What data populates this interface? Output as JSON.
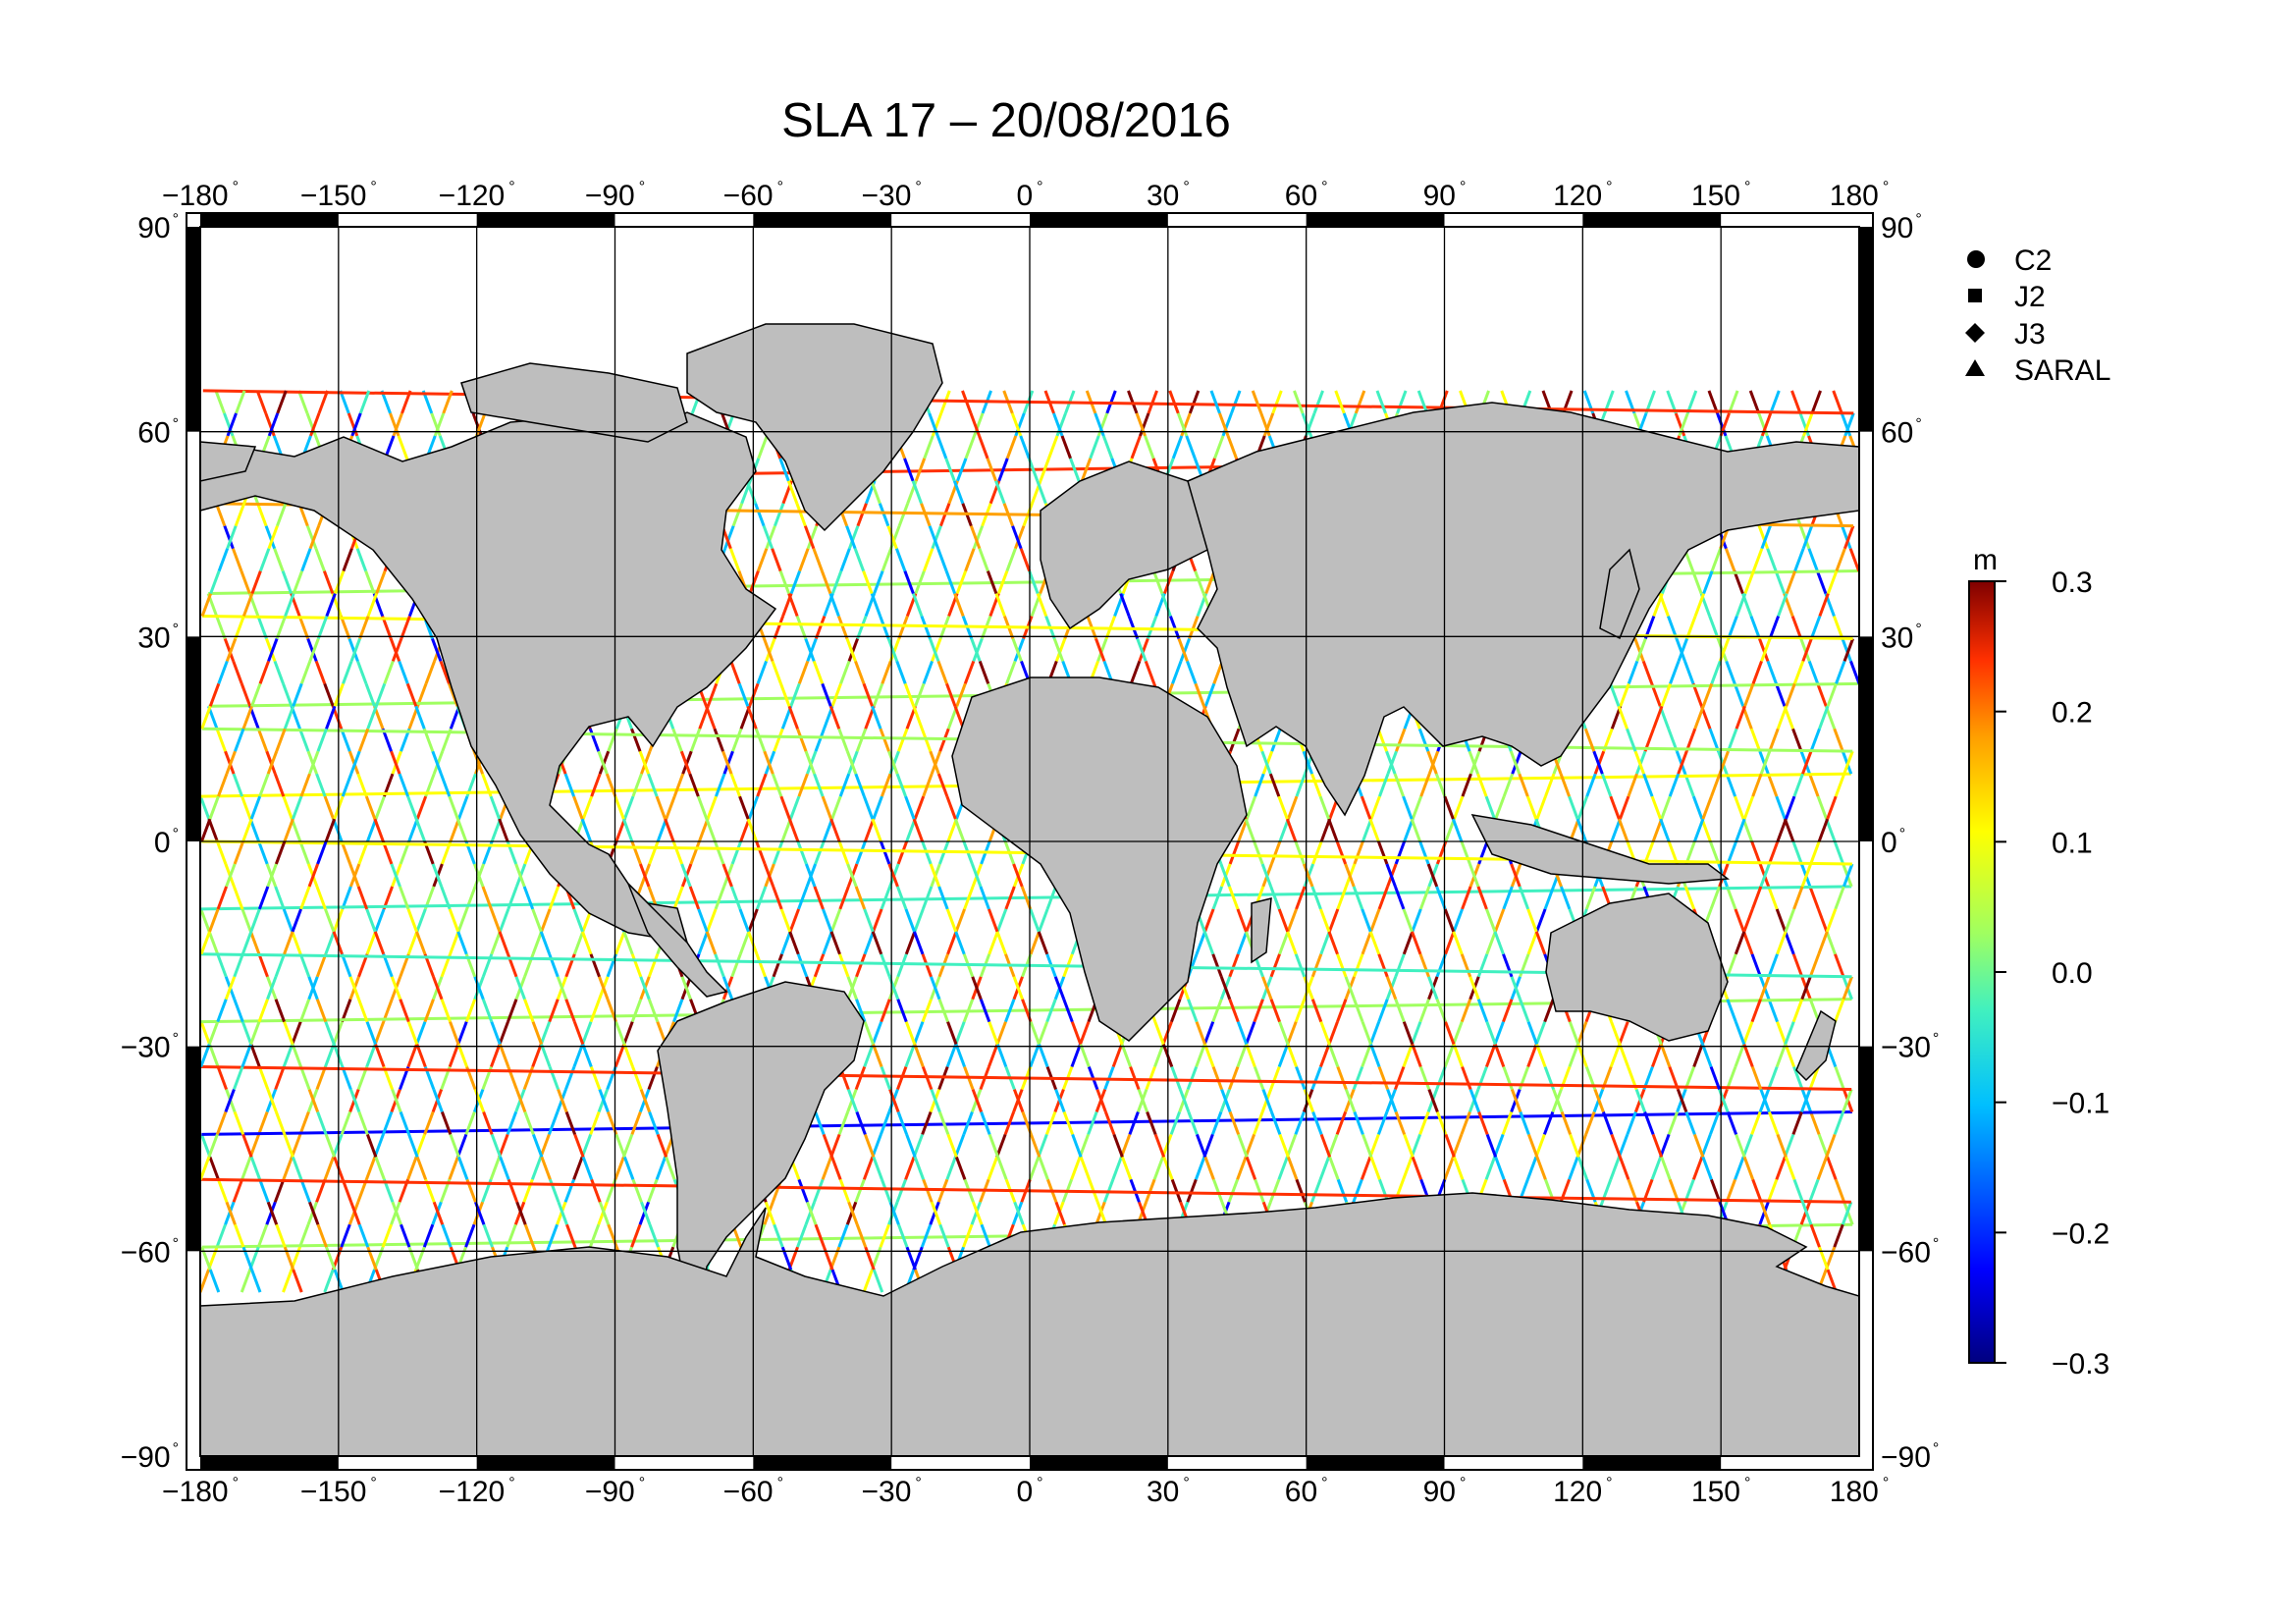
{
  "title": "SLA 17 – 20/08/2016",
  "map": {
    "projection": "equirectangular",
    "lon_range": [
      -180,
      180
    ],
    "lat_range": [
      -90,
      90
    ],
    "lon_ticks": [
      "−180",
      "−150",
      "−120",
      "−90",
      "−60",
      "−30",
      "0",
      "30",
      "60",
      "90",
      "120",
      "150",
      "180"
    ],
    "lat_ticks": [
      "90",
      "60",
      "30",
      "0",
      "−30",
      "−60",
      "−90"
    ],
    "land_color": "#bebebe",
    "ocean_color": "#ffffff",
    "grid": true
  },
  "legend": {
    "items": [
      {
        "symbol": "circle",
        "label": "C2"
      },
      {
        "symbol": "square",
        "label": "J2"
      },
      {
        "symbol": "diamond",
        "label": "J3"
      },
      {
        "symbol": "triangle",
        "label": "SARAL"
      }
    ]
  },
  "colorbar": {
    "unit": "m",
    "min": -0.3,
    "max": 0.3,
    "tick_labels": [
      "0.3",
      "0.2",
      "0.1",
      "0.0",
      "−0.1",
      "−0.2",
      "−0.3"
    ],
    "colormap": [
      "#00007f",
      "#0000ff",
      "#00bfff",
      "#40f0c0",
      "#a0ff60",
      "#ffff00",
      "#ffa000",
      "#ff3000",
      "#7f0000"
    ]
  }
}
